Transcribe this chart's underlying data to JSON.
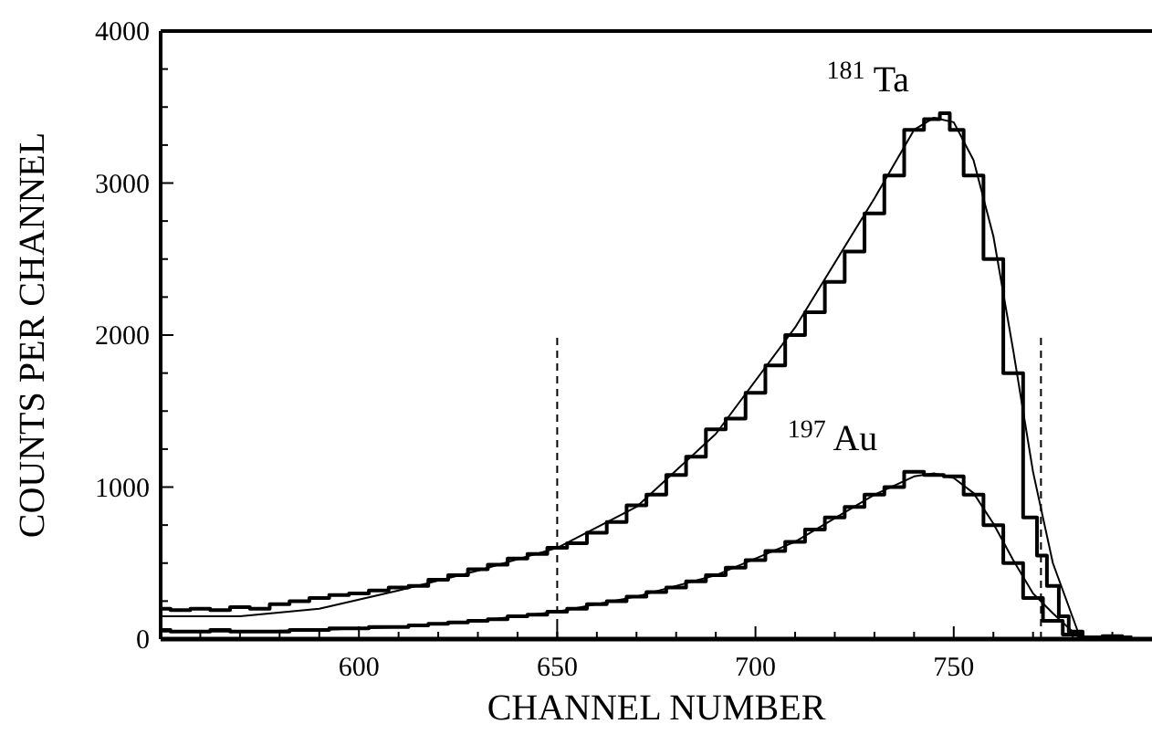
{
  "chart_data": {
    "type": "step",
    "xlabel": "CHANNEL NUMBER",
    "ylabel": "COUNTS PER CHANNEL",
    "xlim": [
      550,
      800
    ],
    "ylim": [
      0,
      4000
    ],
    "xticks": [
      {
        "value": 560,
        "label": null
      },
      {
        "value": 570,
        "label": null
      },
      {
        "value": 580,
        "label": null
      },
      {
        "value": 590,
        "label": null
      },
      600,
      {
        "value": 610,
        "label": null
      },
      {
        "value": 620,
        "label": null
      },
      {
        "value": 630,
        "label": null
      },
      {
        "value": 640,
        "label": null
      },
      650,
      {
        "value": 660,
        "label": null
      },
      {
        "value": 670,
        "label": null
      },
      {
        "value": 680,
        "label": null
      },
      {
        "value": 690,
        "label": null
      },
      700,
      {
        "value": 710,
        "label": null
      },
      {
        "value": 720,
        "label": null
      },
      {
        "value": 730,
        "label": null
      },
      {
        "value": 740,
        "label": null
      },
      750,
      {
        "value": 760,
        "label": null
      },
      {
        "value": 770,
        "label": null
      },
      {
        "value": 780,
        "label": null
      },
      {
        "value": 790,
        "label": null
      }
    ],
    "yticks": [
      0,
      {
        "value": 250,
        "label": null
      },
      {
        "value": 500,
        "label": null
      },
      {
        "value": 750,
        "label": null
      },
      1000,
      {
        "value": 1250,
        "label": null
      },
      {
        "value": 1500,
        "label": null
      },
      {
        "value": 1750,
        "label": null
      },
      2000,
      {
        "value": 2250,
        "label": null
      },
      {
        "value": 2500,
        "label": null
      },
      {
        "value": 2750,
        "label": null
      },
      3000,
      {
        "value": 3250,
        "label": null
      },
      {
        "value": 3500,
        "label": null
      },
      {
        "value": 3750,
        "label": null
      },
      4000
    ],
    "grid": false,
    "series": [
      {
        "name": "$^{181}$ Ta",
        "color": "#000000",
        "x": [
          550,
          555,
          560,
          565,
          570,
          575,
          580,
          585,
          590,
          595,
          600,
          605,
          610,
          615,
          620,
          625,
          630,
          635,
          640,
          645,
          650,
          655,
          660,
          665,
          670,
          675,
          680,
          685,
          690,
          695,
          700,
          705,
          710,
          715,
          720,
          725,
          730,
          735,
          740,
          745,
          748,
          750,
          755,
          760,
          765,
          770,
          772,
          775,
          778,
          780,
          785,
          790,
          795
        ],
        "values": [
          200,
          190,
          200,
          190,
          210,
          200,
          230,
          250,
          270,
          290,
          300,
          320,
          340,
          350,
          390,
          420,
          460,
          490,
          530,
          560,
          600,
          630,
          700,
          770,
          880,
          950,
          1080,
          1200,
          1380,
          1450,
          1620,
          1800,
          2000,
          2150,
          2350,
          2550,
          2800,
          3050,
          3350,
          3420,
          3460,
          3350,
          3050,
          2500,
          1750,
          800,
          550,
          350,
          150,
          50,
          10,
          20,
          10
        ]
      },
      {
        "name": "$^{197}$ Au",
        "color": "#000000",
        "x": [
          550,
          555,
          560,
          565,
          570,
          575,
          580,
          585,
          590,
          595,
          600,
          605,
          610,
          615,
          620,
          625,
          630,
          635,
          640,
          645,
          650,
          655,
          660,
          665,
          670,
          675,
          680,
          685,
          690,
          695,
          700,
          705,
          710,
          715,
          720,
          725,
          730,
          735,
          740,
          745,
          750,
          755,
          760,
          765,
          770,
          775,
          780,
          785,
          790,
          795
        ],
        "values": [
          60,
          50,
          50,
          60,
          50,
          50,
          50,
          60,
          60,
          70,
          70,
          80,
          80,
          90,
          100,
          110,
          120,
          130,
          150,
          160,
          180,
          200,
          230,
          250,
          280,
          310,
          340,
          380,
          420,
          470,
          520,
          580,
          640,
          720,
          800,
          870,
          950,
          1000,
          1100,
          1080,
          1070,
          950,
          750,
          500,
          270,
          120,
          30,
          10,
          10,
          10
        ]
      },
      {
        "type": "line",
        "color": "#000000",
        "x": [
          550,
          570,
          590,
          610,
          630,
          650,
          670,
          690,
          710,
          730,
          740,
          745,
          750,
          755,
          760,
          765,
          770,
          775,
          782
        ],
        "values": [
          150,
          150,
          200,
          320,
          450,
          600,
          870,
          1350,
          2050,
          2900,
          3350,
          3430,
          3400,
          3150,
          2650,
          1900,
          1100,
          500,
          0
        ]
      },
      {
        "type": "line",
        "color": "#000000",
        "x": [
          550,
          570,
          590,
          610,
          630,
          650,
          670,
          690,
          710,
          730,
          740,
          745,
          750,
          755,
          760,
          765,
          770,
          775,
          782
        ],
        "values": [
          50,
          50,
          60,
          80,
          120,
          180,
          280,
          420,
          640,
          950,
          1070,
          1090,
          1060,
          960,
          760,
          520,
          300,
          170,
          0
        ]
      },
      {
        "type": "line",
        "color": "#000000",
        "line_style": "dashed",
        "x": [
          650,
          650
        ],
        "values": [
          0,
          2000
        ]
      },
      {
        "type": "line",
        "color": "#000000",
        "line_style": "dashed",
        "x": [
          772,
          772
        ],
        "values": [
          0,
          2000
        ]
      }
    ]
  }
}
